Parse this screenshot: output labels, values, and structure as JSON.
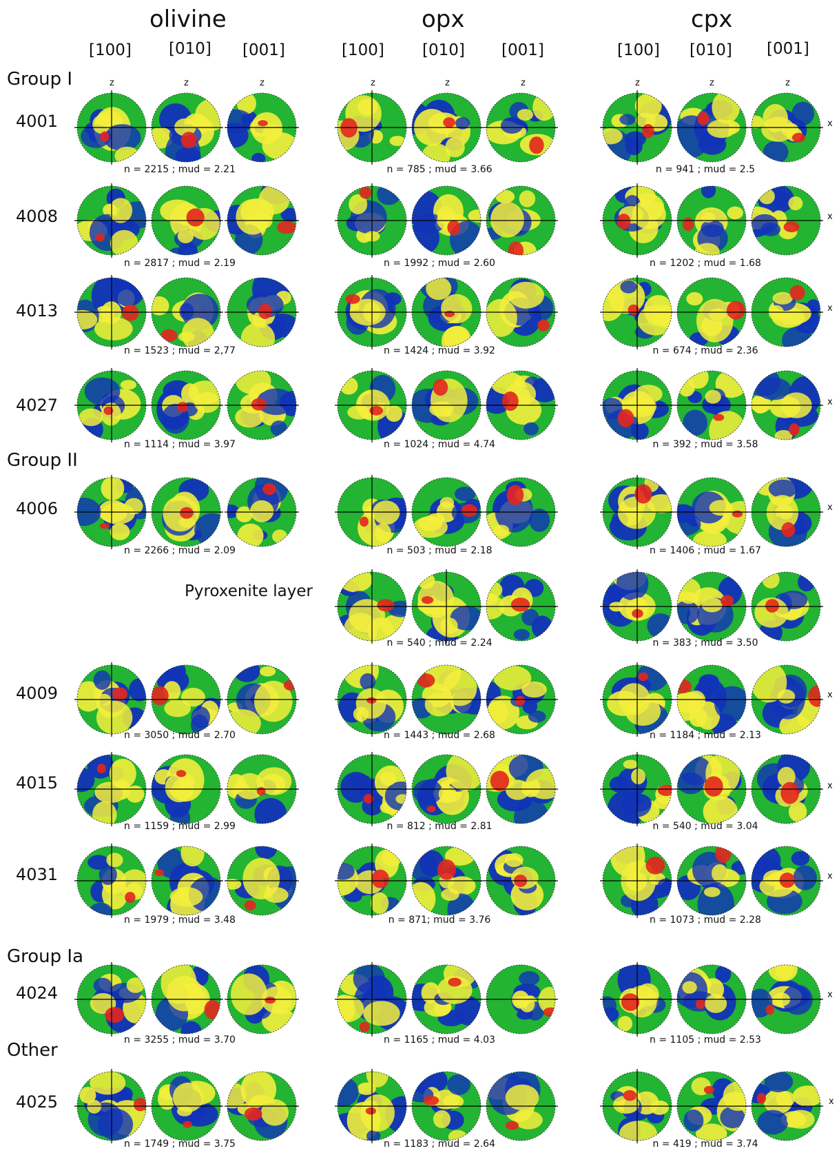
{
  "minerals": [
    {
      "name": "olivine",
      "axes": [
        "[100]",
        "[010]",
        "[001]"
      ]
    },
    {
      "name": "opx",
      "axes": [
        "[100]",
        "[010]",
        "[001]"
      ]
    },
    {
      "name": "cpx",
      "axes": [
        "[100]",
        "[010]",
        "[001]"
      ]
    }
  ],
  "labels": {
    "z": "z",
    "x": "x",
    "pyroxenite_layer": "Pyroxenite layer"
  },
  "groups": [
    "Group I",
    "Group II",
    "Group Ia",
    "Other"
  ],
  "samples": [
    {
      "id": "4001",
      "olivine": "n = 2215 ; mud = 2.21",
      "opx": "n = 785 ; mud = 3.66",
      "cpx": "n = 941 ; mud = 2.5"
    },
    {
      "id": "4008",
      "olivine": "n = 2817 ; mud = 2.19",
      "opx": "n = 1992 ; mud = 2.60",
      "cpx": "n = 1202 ; mud = 1.68"
    },
    {
      "id": "4013",
      "olivine": "n = 1523 ; mud = 2,77",
      "opx": "n = 1424 ; mud = 3.92",
      "cpx": "n = 674 ; mud = 2.36"
    },
    {
      "id": "4027",
      "olivine": "n = 1114 ; mud = 3.97",
      "opx": "n = 1024 ; mud = 4.74",
      "cpx": "n = 392 ; mud = 3.58"
    },
    {
      "id": "4006",
      "olivine": "n = 2266 ; mud = 2.09",
      "opx": "n = 503 ; mud = 2.18",
      "cpx": "n = 1406 ; mud = 1.67"
    },
    {
      "id": "",
      "olivine": "",
      "opx": "n = 540 ; mud = 2.24",
      "cpx": "n = 383 ; mud = 3.50"
    },
    {
      "id": "4009",
      "olivine": "n = 3050 ; mud = 2.70",
      "opx": "n = 1443 ; mud = 2.68",
      "cpx": "n = 1184 ; mud = 2.13"
    },
    {
      "id": "4015",
      "olivine": "n = 1159 ; mud = 2.99",
      "opx": "n = 812 ; mud = 2.81",
      "cpx": "n = 540 ; mud = 3.04"
    },
    {
      "id": "4031",
      "olivine": "n = 1979 ; mud = 3.48",
      "opx": "n = 871; mud = 3.76",
      "cpx": "n = 1073 ; mud = 2.28"
    },
    {
      "id": "4024",
      "olivine": "n = 3255 ; mud = 3.70",
      "opx": "n = 1165 ; mud = 4.03",
      "cpx": "n = 1105 ; mud = 2.53"
    },
    {
      "id": "4025",
      "olivine": "n = 1749 ; mud = 3.75",
      "opx": "n = 1183 ; mud = 2.64",
      "cpx": "n = 419 ; mud = 3.74"
    }
  ],
  "colors": {
    "low": "#1233b8",
    "mid": "#22b432",
    "high": "#f3ee3c",
    "max": "#e3261e"
  }
}
